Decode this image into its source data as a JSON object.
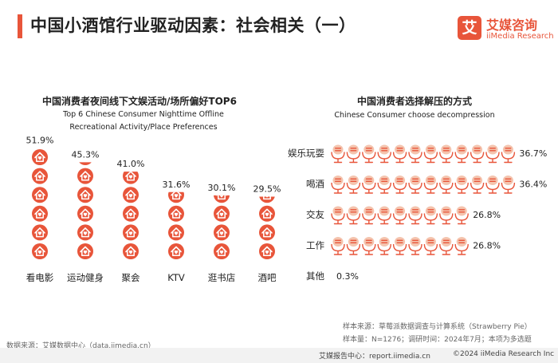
{
  "header": {
    "title": "中国小酒馆行业驱动因素：社会相关（一）",
    "logo_mark": "艾",
    "logo_cn": "艾媒咨询",
    "logo_en": "iiMedia Research"
  },
  "colors": {
    "accent": "#e8553a",
    "icon_light": "#f4c4ae"
  },
  "chart_data": [
    {
      "type": "bar",
      "title": "中国消费者夜间线下文娱活动/场所偏好TOP6",
      "subtitle": "Top 6 Chinese Consumer Nighttime Offline Recreational Activity/Place Preferences",
      "categories": [
        "看电影",
        "运动健身",
        "聚会",
        "KTV",
        "逛书店",
        "酒吧"
      ],
      "values": [
        51.9,
        45.3,
        41.0,
        31.6,
        30.1,
        29.5
      ],
      "labels": [
        "51.9%",
        "45.3%",
        "41.0%",
        "31.6%",
        "30.1%",
        "29.5%"
      ],
      "unit": "%",
      "ylim": [
        0,
        60
      ],
      "icon": "house-icon"
    },
    {
      "type": "bar",
      "orientation": "horizontal",
      "title": "中国消费者选择解压的方式",
      "subtitle": "Chinese Consumer choose decompression",
      "categories": [
        "娱乐玩耍",
        "喝酒",
        "交友",
        "工作",
        "其他"
      ],
      "values": [
        36.7,
        36.4,
        26.8,
        26.8,
        0.3
      ],
      "labels": [
        "36.7%",
        "36.4%",
        "26.8%",
        "26.8%",
        "0.3%"
      ],
      "unit": "%",
      "xlim": [
        0,
        40
      ],
      "icon": "microphone-icon"
    }
  ],
  "footer": {
    "note_source": "样本来源：草莓派数据调查与计算系统（Strawberry Pie）",
    "note_sample": "样本量：N=1276；调研时间：2024年7月；本项为多选题",
    "data_source": "数据来源：艾媒数据中心（data.iimedia.cn）",
    "report_site": "艾媒报告中心：report.iimedia.cn",
    "copyright": "©2024  iiMedia Research  Inc"
  }
}
